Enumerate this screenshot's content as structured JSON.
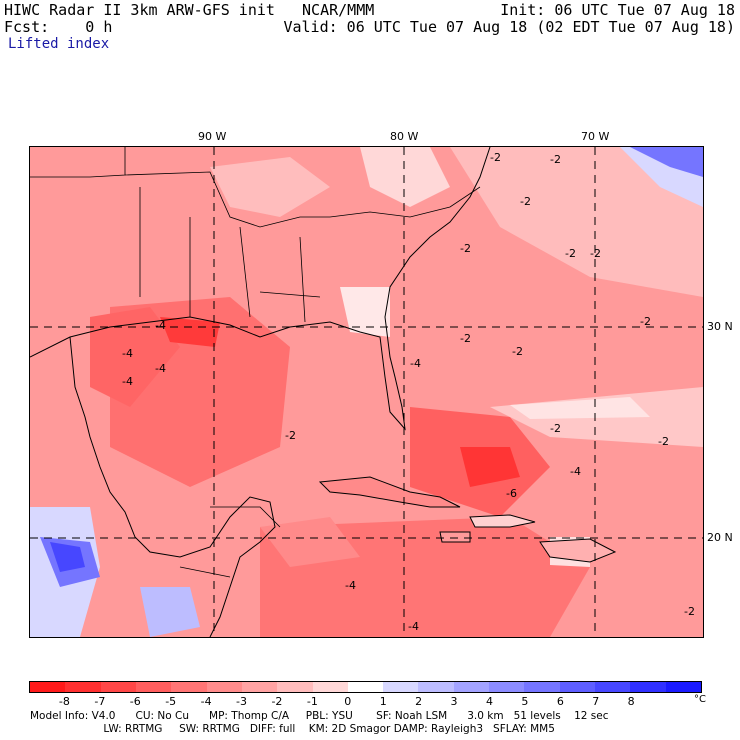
{
  "header": {
    "title": "HIWC Radar II 3km ARW-GFS init   NCAR/MMM",
    "init": "Init: 06 UTC Tue 07 Aug 18",
    "fcst": "Fcst:    0 h",
    "valid": "Valid: 06 UTC Tue 07 Aug 18 (02 EDT Tue 07 Aug 18)",
    "field": "Lifted index"
  },
  "map": {
    "lon_labels": [
      "90 W",
      "80 W",
      "70 W"
    ],
    "lat_labels": [
      "30 N",
      "20 N"
    ],
    "contour_labels": [
      "-2",
      "-4",
      "-6"
    ]
  },
  "colorbar": {
    "unit": "°C",
    "ticks": [
      "-8",
      "-7",
      "-6",
      "-5",
      "-4",
      "-3",
      "-2",
      "-1",
      "0",
      "1",
      "2",
      "3",
      "4",
      "5",
      "6",
      "7",
      "8"
    ],
    "colors": [
      "#ff1a1a",
      "#ff3030",
      "#ff4747",
      "#ff5e5e",
      "#ff7575",
      "#ff8c8c",
      "#ffa3a3",
      "#ffbdbd",
      "#ffd8d8",
      "#ffffff",
      "#d8d8ff",
      "#bdbdff",
      "#a3a3ff",
      "#8c8cff",
      "#7575ff",
      "#5e5eff",
      "#4747ff",
      "#3030ff",
      "#1a1aff"
    ]
  },
  "footer": {
    "line1": "Model Info: V4.0      CU: No Cu      MP: Thomp C/A     PBL: YSU       SF: Noah LSM      3.0 km   51 levels    12 sec",
    "line2": "                      LW: RRTMG     SW: RRTMG   DIFF: full    KM: 2D Smagor DAMP: Rayleigh3   SFLAY: MM5"
  }
}
